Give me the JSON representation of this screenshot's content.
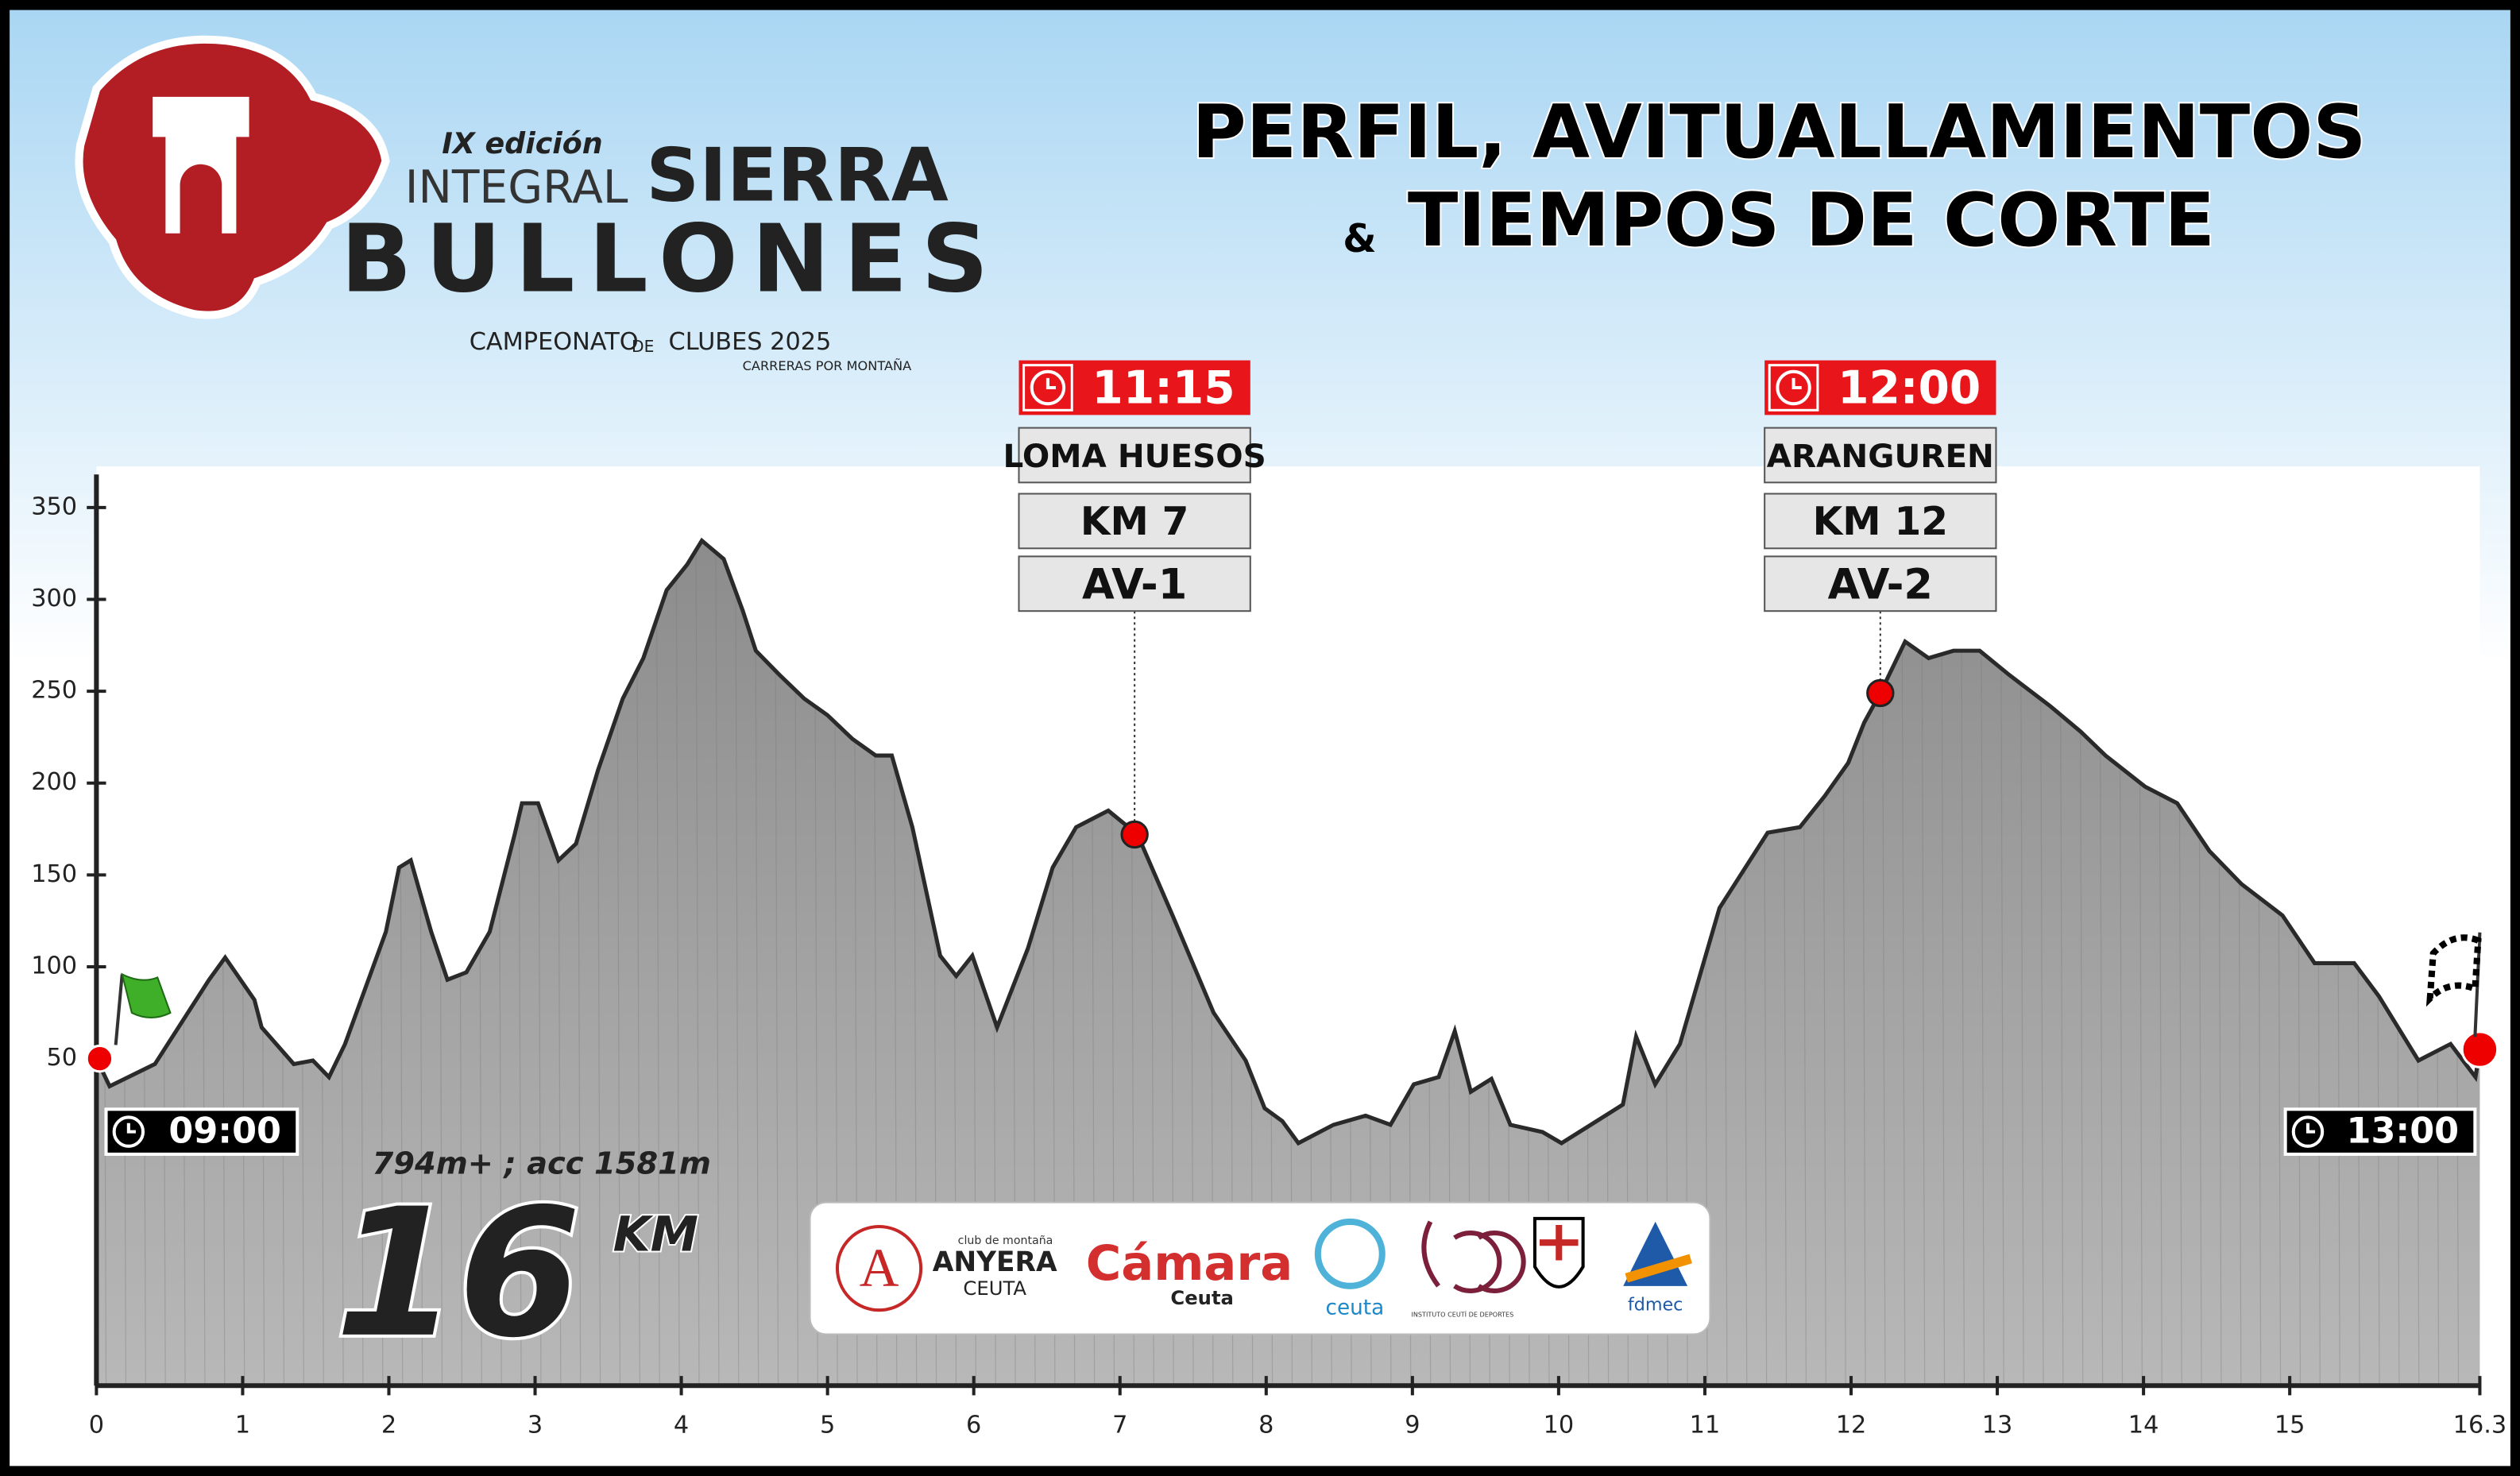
{
  "event": {
    "edition": "IX edición",
    "name_1": "INTEGRAL",
    "name_2": "SIERRA",
    "name_3": "BULLONES",
    "championship_1": "CAMPEONATO",
    "championship_2": "DE",
    "championship_3": "CLUBES 2025",
    "championship_sub": "CARRERAS POR MONTAÑA"
  },
  "sponsors": [
    "club de montaña",
    "ANYERA",
    "CEUTA",
    "Cámara",
    "Ceuta",
    "ceuta",
    "INSTITUTO CEUTÍ DE DEPORTES",
    "fdmec"
  ],
  "chart_data": {
    "type": "area",
    "title": "PERFIL, AVITUALLAMIENTOS",
    "title_amp": "&",
    "subtitle": "TIEMPOS DE CORTE",
    "elevation_summary": "794m+ ; acc 1581m",
    "distance": 16,
    "distance_unit": "KM",
    "start_time": "09:00",
    "finish_time": "13:00",
    "x": [
      0,
      0.09,
      0.4,
      0.77,
      0.88,
      1.08,
      1.13,
      1.35,
      1.48,
      1.59,
      1.7,
      1.81,
      1.98,
      2.07,
      2.15,
      2.29,
      2.4,
      2.53,
      2.69,
      2.86,
      2.91,
      3.02,
      3.16,
      3.28,
      3.43,
      3.6,
      3.74,
      3.9,
      4.04,
      4.14,
      4.29,
      4.42,
      4.51,
      4.67,
      4.84,
      5.0,
      5.17,
      5.33,
      5.44,
      5.58,
      5.77,
      5.88,
      5.99,
      6.16,
      6.37,
      6.54,
      6.7,
      6.92,
      7.12,
      7.36,
      7.64,
      7.86,
      7.99,
      8.11,
      8.22,
      8.46,
      8.68,
      8.85,
      9.01,
      9.18,
      9.29,
      9.4,
      9.54,
      9.67,
      9.89,
      10.02,
      10.22,
      10.44,
      10.53,
      10.66,
      10.83,
      11.1,
      11.43,
      11.65,
      11.82,
      11.98,
      12.09,
      12.2,
      12.37,
      12.53,
      12.7,
      12.88,
      13.08,
      13.36,
      13.57,
      13.74,
      14.01,
      14.23,
      14.45,
      14.67,
      14.95,
      15.17,
      15.44,
      15.61,
      15.88,
      16.1,
      16.27,
      16.3
    ],
    "values": [
      50,
      35,
      47,
      93,
      105,
      82,
      67,
      47,
      49,
      40,
      58,
      82,
      119,
      154,
      158,
      119,
      93,
      97,
      119,
      172,
      189,
      189,
      158,
      167,
      207,
      246,
      268,
      305,
      319,
      332,
      322,
      294,
      272,
      259,
      246,
      237,
      224,
      215,
      215,
      176,
      106,
      95,
      106,
      67,
      110,
      154,
      176,
      185,
      172,
      128,
      75,
      49,
      23,
      16,
      4,
      14,
      19,
      14,
      36,
      40,
      65,
      32,
      39,
      14,
      10,
      4,
      14,
      25,
      62,
      36,
      58,
      132,
      173,
      176,
      193,
      211,
      233,
      249,
      277,
      268,
      272,
      272,
      259,
      242,
      228,
      215,
      198,
      189,
      163,
      145,
      128,
      102,
      102,
      84,
      49,
      58,
      40,
      55
    ],
    "color": "#9a9a9a",
    "stations": [
      {
        "time": "11:15",
        "name": "LOMA HUESOS",
        "km_label": "KM 7",
        "code": "AV-1",
        "x": 7.1,
        "elevation": 172
      },
      {
        "time": "12:00",
        "name": "ARANGUREN",
        "km_label": "KM 12",
        "code": "AV-2",
        "x": 12.2,
        "elevation": 249
      }
    ],
    "xlim": [
      0,
      16.3
    ],
    "xticks": [
      0,
      1,
      2,
      3,
      4,
      5,
      6,
      7,
      8,
      9,
      10,
      11,
      12,
      13,
      14,
      15,
      16.3
    ],
    "ylim": [
      -128,
      368
    ],
    "yticks": [
      50,
      100,
      150,
      200,
      250,
      300,
      350
    ]
  }
}
